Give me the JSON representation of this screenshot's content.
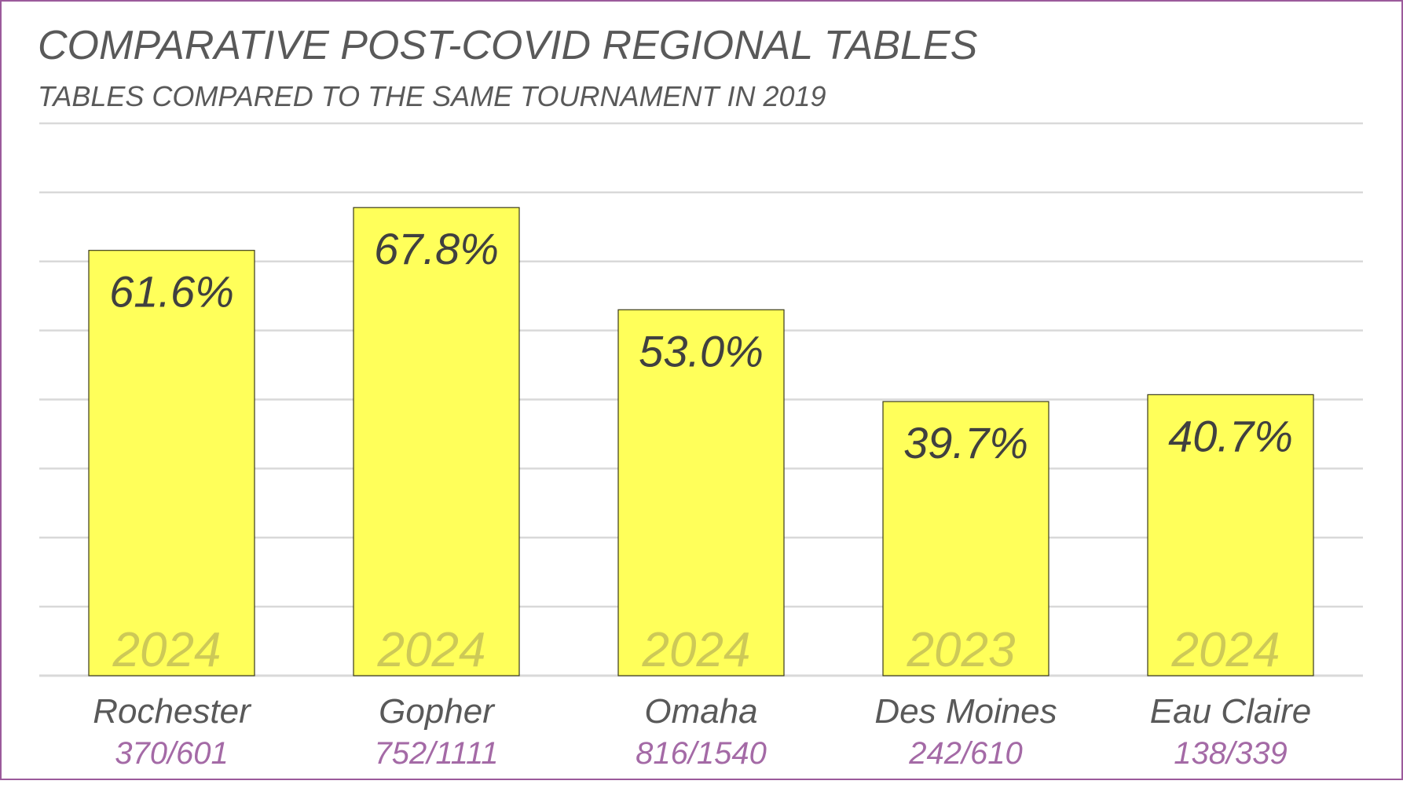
{
  "chart_data": {
    "type": "bar",
    "title": "COMPARATIVE POST-COVID REGIONAL TABLES",
    "subtitle": "TABLES COMPARED TO THE SAME TOURNAMENT IN 2019",
    "categories": [
      "Rochester",
      "Gopher",
      "Omaha",
      "Des Moines",
      "Eau Claire"
    ],
    "values": [
      61.6,
      67.8,
      53.0,
      39.7,
      40.7
    ],
    "value_labels": [
      "61.6%",
      "67.8%",
      "53.0%",
      "39.7%",
      "40.7%"
    ],
    "years": [
      "2024",
      "2024",
      "2024",
      "2023",
      "2024"
    ],
    "ratios": [
      "370/601",
      "752/1111",
      "816/1540",
      "242/610",
      "138/339"
    ],
    "ylim": [
      0,
      80
    ],
    "grid": true,
    "colors": {
      "bar_fill": "#ffff5a",
      "bar_stroke": "#3a3a1a",
      "value_text": "#404040",
      "year_text": "#cdc957",
      "category_text": "#595959",
      "ratio_text": "#a46aa6",
      "grid": "#d9d9d9",
      "border": "#9b5a9b"
    }
  }
}
